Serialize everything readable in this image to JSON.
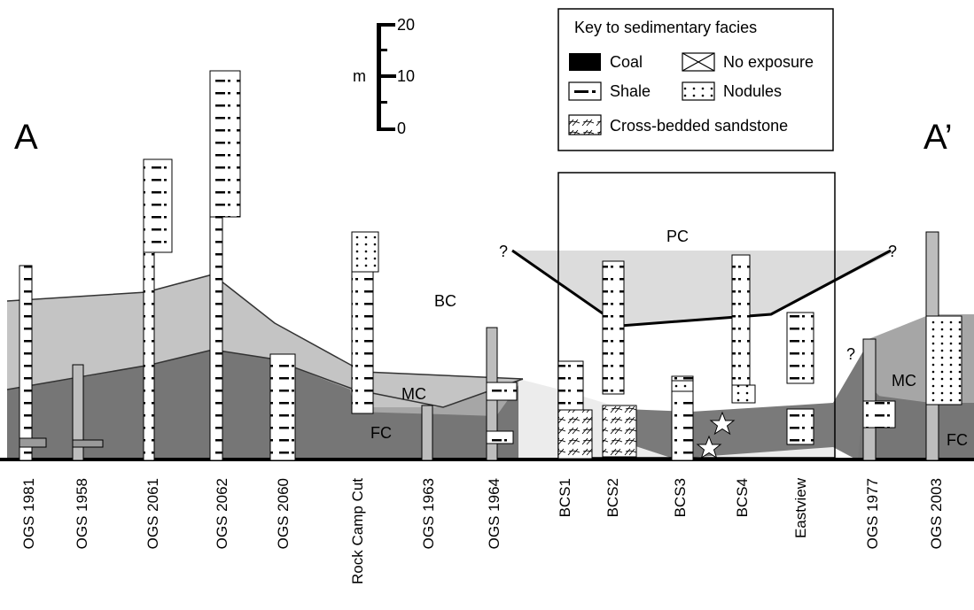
{
  "ends": {
    "left": "A",
    "right": "A’"
  },
  "scale_bar": {
    "unit": "m",
    "ticks": [
      "20",
      "10",
      "0"
    ]
  },
  "key": {
    "title": "Key to sedimentary facies",
    "items": [
      {
        "icon": "coal-swatch-icon",
        "label": "Coal"
      },
      {
        "icon": "no-exposure-swatch-icon",
        "label": "No exposure"
      },
      {
        "icon": "shale-swatch-icon",
        "label": "Shale"
      },
      {
        "icon": "nodules-swatch-icon",
        "label": "Nodules"
      },
      {
        "icon": "cross-bedded-sandstone-swatch-icon",
        "label": "Cross-bedded sandstone"
      }
    ]
  },
  "units": {
    "pc": "PC",
    "bc": "BC",
    "mc_left": "MC",
    "mc_right": "MC",
    "fc_left": "FC",
    "fc_right": "FC"
  },
  "question_marks": [
    "?",
    "?",
    "?"
  ],
  "sections": [
    "OGS 1981",
    "OGS 1958",
    "OGS 2061",
    "OGS 2062",
    "OGS 2060",
    "Rock Camp Cut",
    "OGS 1963",
    "OGS 1964",
    "BCS1",
    "BCS2",
    "BCS3",
    "BCS4",
    "Eastview",
    "OGS 1977",
    "OGS 2003"
  ],
  "colors": {
    "fc": "#767676",
    "mc": "#a6a6a6",
    "bc_band": "#c4c4c4",
    "pc_band": "#dcdcdc",
    "sand": "#ececec"
  }
}
